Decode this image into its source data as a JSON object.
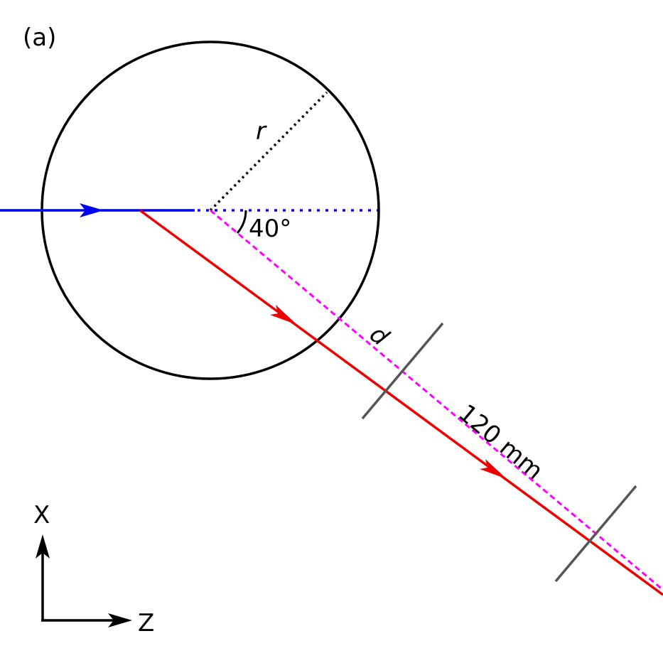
{
  "panel_label": "(a)",
  "labels": {
    "radius": "r",
    "angle": "40°",
    "distance": "d",
    "length": "120 mm"
  },
  "axes": {
    "x_label": "X",
    "z_label": "Z"
  },
  "colors": {
    "incident_beam": "#0000ee",
    "scattered_beam": "#ee0000",
    "reference_line": "#ff00ff",
    "outline": "#000000",
    "detector": "#555555"
  }
}
